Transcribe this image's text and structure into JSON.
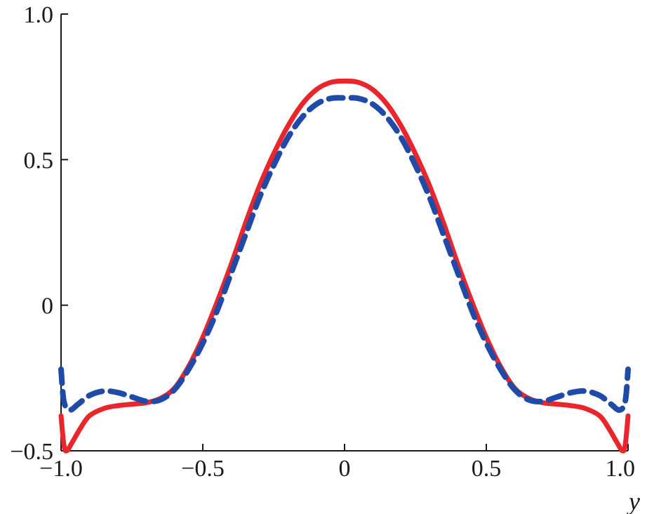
{
  "chart_data": {
    "type": "line",
    "title": "",
    "xlabel": "y",
    "ylabel": "",
    "xlim": [
      -1.0,
      1.0
    ],
    "ylim": [
      -0.5,
      1.0
    ],
    "grid": false,
    "legend": "none",
    "x_ticks": [
      {
        "value": -1.0,
        "label": "−1.0"
      },
      {
        "value": -0.5,
        "label": "−0.5"
      },
      {
        "value": 0,
        "label": "0"
      },
      {
        "value": 0.5,
        "label": "0.5"
      },
      {
        "value": 1.0,
        "label": "1.0"
      }
    ],
    "y_ticks": [
      {
        "value": -0.5,
        "label": "−0.5"
      },
      {
        "value": 0,
        "label": "0"
      },
      {
        "value": 0.5,
        "label": "0.5"
      },
      {
        "value": 1.0,
        "label": "1.0"
      }
    ],
    "series": [
      {
        "color": "#e8262b",
        "style": "solid",
        "x": [
          -1.0,
          -0.99,
          -0.98,
          -0.96,
          -0.93,
          -0.9,
          -0.85,
          -0.8,
          -0.75,
          -0.7,
          -0.65,
          -0.6,
          -0.55,
          -0.5,
          -0.45,
          -0.4,
          -0.35,
          -0.3,
          -0.25,
          -0.2,
          -0.15,
          -0.1,
          -0.05,
          0.0,
          0.05,
          0.1,
          0.15,
          0.2,
          0.25,
          0.3,
          0.35,
          0.4,
          0.45,
          0.5,
          0.55,
          0.6,
          0.65,
          0.7,
          0.75,
          0.8,
          0.85,
          0.9,
          0.93,
          0.96,
          0.98,
          0.99,
          1.0
        ],
        "y": [
          -0.38,
          -0.48,
          -0.5,
          -0.47,
          -0.42,
          -0.38,
          -0.355,
          -0.345,
          -0.34,
          -0.335,
          -0.32,
          -0.285,
          -0.21,
          -0.11,
          0.01,
          0.14,
          0.28,
          0.41,
          0.52,
          0.615,
          0.69,
          0.74,
          0.765,
          0.77,
          0.765,
          0.74,
          0.69,
          0.615,
          0.52,
          0.41,
          0.28,
          0.14,
          0.01,
          -0.11,
          -0.21,
          -0.285,
          -0.32,
          -0.335,
          -0.34,
          -0.345,
          -0.355,
          -0.38,
          -0.42,
          -0.47,
          -0.5,
          -0.48,
          -0.38
        ]
      },
      {
        "color": "#1f4aa8",
        "style": "dashed",
        "x": [
          -1.0,
          -0.99,
          -0.97,
          -0.94,
          -0.9,
          -0.85,
          -0.8,
          -0.75,
          -0.7,
          -0.65,
          -0.6,
          -0.55,
          -0.5,
          -0.45,
          -0.4,
          -0.35,
          -0.3,
          -0.25,
          -0.2,
          -0.15,
          -0.1,
          -0.05,
          0.0,
          0.05,
          0.1,
          0.15,
          0.2,
          0.25,
          0.3,
          0.35,
          0.4,
          0.45,
          0.5,
          0.55,
          0.6,
          0.65,
          0.7,
          0.75,
          0.8,
          0.85,
          0.9,
          0.94,
          0.97,
          0.99,
          1.0
        ],
        "y": [
          -0.22,
          -0.33,
          -0.36,
          -0.34,
          -0.31,
          -0.295,
          -0.3,
          -0.315,
          -0.33,
          -0.325,
          -0.29,
          -0.22,
          -0.13,
          -0.02,
          0.11,
          0.24,
          0.37,
          0.48,
          0.575,
          0.645,
          0.69,
          0.71,
          0.712,
          0.71,
          0.69,
          0.645,
          0.575,
          0.48,
          0.37,
          0.24,
          0.11,
          -0.02,
          -0.13,
          -0.22,
          -0.29,
          -0.325,
          -0.33,
          -0.315,
          -0.3,
          -0.295,
          -0.31,
          -0.34,
          -0.36,
          -0.33,
          -0.22
        ]
      }
    ]
  }
}
